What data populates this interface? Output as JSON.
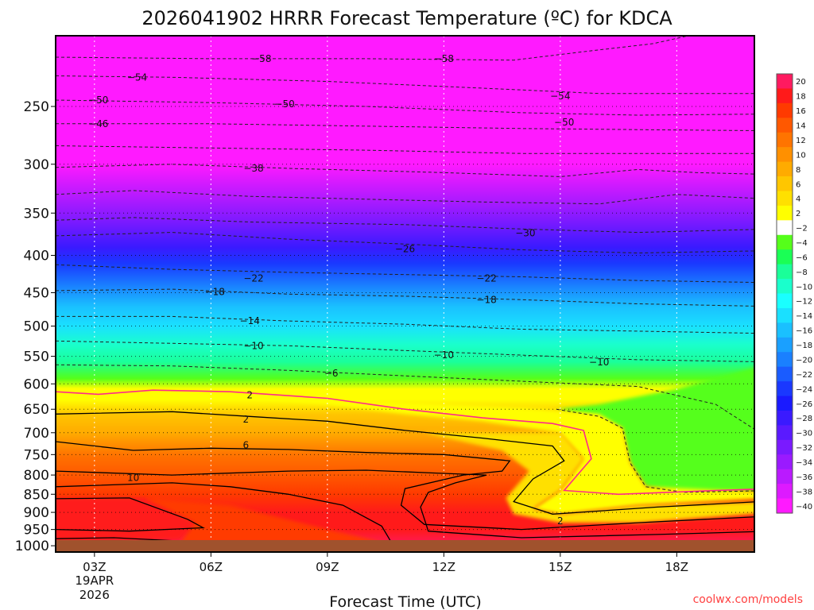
{
  "chart_data": {
    "type": "heatmap",
    "title": "2026041902 HRRR Forecast Temperature (ºC) for KDCA",
    "xlabel": "Forecast Time (UTC)",
    "ylabel": "",
    "credit": "coolwx.com/models",
    "x_ticks": [
      {
        "hour": 3,
        "label": "03Z"
      },
      {
        "hour": 6,
        "label": "06Z"
      },
      {
        "hour": 9,
        "label": "09Z"
      },
      {
        "hour": 12,
        "label": "12Z"
      },
      {
        "hour": 15,
        "label": "15Z"
      },
      {
        "hour": 18,
        "label": "18Z"
      }
    ],
    "date_label": [
      "19APR",
      "2026"
    ],
    "x_range_hours": [
      2,
      20
    ],
    "y_ticks": [
      250,
      300,
      350,
      400,
      450,
      500,
      550,
      600,
      650,
      700,
      750,
      800,
      850,
      900,
      950,
      1000
    ],
    "y_range_hPa": [
      200,
      1020
    ],
    "y_scale": "log-pressure",
    "colorbar": {
      "levels": [
        20,
        18,
        16,
        14,
        12,
        10,
        8,
        6,
        4,
        2,
        -2,
        -4,
        -6,
        -8,
        -10,
        -12,
        -14,
        -16,
        -18,
        -20,
        -22,
        -24,
        -26,
        -28,
        -30,
        -32,
        -34,
        -36,
        -38,
        -40
      ],
      "colors": [
        "#ff1a60",
        "#ff1a1a",
        "#ff3a00",
        "#ff5800",
        "#ff7400",
        "#ff9000",
        "#ffab00",
        "#ffc600",
        "#ffe000",
        "#ffff00",
        "#ffffff",
        "#55ff1a",
        "#1aff55",
        "#1aff99",
        "#1affcc",
        "#1affff",
        "#1ae0ff",
        "#1ac0ff",
        "#1aa0ff",
        "#1a80ff",
        "#1a5cff",
        "#1a38ff",
        "#1a1aff",
        "#3a1aff",
        "#5a1aff",
        "#7a1aff",
        "#9a1aff",
        "#ba1aff",
        "#dd1aff",
        "#ff1aff"
      ]
    },
    "ground_color": "#a0522d",
    "contour_labels": [
      {
        "value": "-58",
        "hour": 7.3,
        "hPa": 215
      },
      {
        "value": "-58",
        "hour": 12.0,
        "hPa": 215
      },
      {
        "value": "-54",
        "hour": 4.1,
        "hPa": 228
      },
      {
        "value": "-54",
        "hour": 15.0,
        "hPa": 242
      },
      {
        "value": "-50",
        "hour": 3.1,
        "hPa": 245
      },
      {
        "value": "-50",
        "hour": 7.9,
        "hPa": 248
      },
      {
        "value": "-50",
        "hour": 15.1,
        "hPa": 263
      },
      {
        "value": "-46",
        "hour": 3.1,
        "hPa": 264
      },
      {
        "value": "-38",
        "hour": 7.1,
        "hPa": 304
      },
      {
        "value": "-30",
        "hour": 14.1,
        "hPa": 373
      },
      {
        "value": "-26",
        "hour": 11.0,
        "hPa": 392
      },
      {
        "value": "-22",
        "hour": 7.1,
        "hPa": 430
      },
      {
        "value": "-22",
        "hour": 13.1,
        "hPa": 430
      },
      {
        "value": "-18",
        "hour": 6.1,
        "hPa": 449
      },
      {
        "value": "-18",
        "hour": 13.1,
        "hPa": 460
      },
      {
        "value": "-14",
        "hour": 7.0,
        "hPa": 492
      },
      {
        "value": "-10",
        "hour": 7.1,
        "hPa": 532
      },
      {
        "value": "-10",
        "hour": 12.0,
        "hPa": 548
      },
      {
        "value": "-10",
        "hour": 16.0,
        "hPa": 560
      },
      {
        "value": "-6",
        "hour": 9.1,
        "hPa": 580
      },
      {
        "value": "2",
        "hour": 7.0,
        "hPa": 622
      },
      {
        "value": "2",
        "hour": 6.9,
        "hPa": 671
      },
      {
        "value": "6",
        "hour": 6.9,
        "hPa": 728
      },
      {
        "value": "10",
        "hour": 4.0,
        "hPa": 807
      },
      {
        "value": "2",
        "hour": 15.0,
        "hPa": 925
      }
    ]
  }
}
